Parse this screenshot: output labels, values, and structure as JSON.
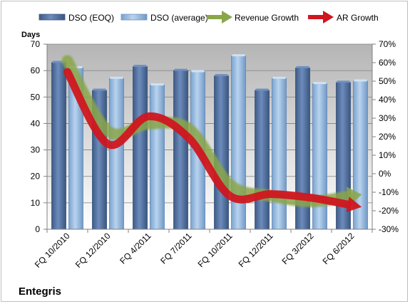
{
  "chart_data": {
    "type": "bar",
    "company": "Entegris",
    "ylabel_left": "Days",
    "categories": [
      "FQ 10/2010",
      "FQ 12/2010",
      "FQ 4/2011",
      "FQ 7/2011",
      "FQ 10/2011",
      "FQ 12/2011",
      "FQ 3/2012",
      "FQ 6/2012"
    ],
    "ylim_left": [
      0,
      70
    ],
    "yticks_left": [
      "0",
      "10",
      "20",
      "30",
      "40",
      "50",
      "60",
      "70"
    ],
    "ylim_right": [
      -0.3,
      0.7
    ],
    "yticks_right": [
      "-30%",
      "-20%",
      "-10%",
      "0%",
      "10%",
      "20%",
      "30%",
      "40%",
      "50%",
      "60%",
      "70%"
    ],
    "grid": true,
    "legend_position": "top",
    "bar_series": [
      {
        "name": "DSO (EOQ)",
        "color": "#4f6d99",
        "values": [
          63,
          52.5,
          61.5,
          60,
          58,
          52.5,
          61,
          55.5
        ]
      },
      {
        "name": "DSO (average)",
        "color": "#8fb3d9",
        "values": [
          61,
          57,
          54.5,
          59.5,
          65.5,
          57,
          55,
          56
        ]
      }
    ],
    "line_series": [
      {
        "name": "Revenue Growth",
        "color": "#8aa64a",
        "axis": "right",
        "values": [
          0.61,
          0.23,
          0.27,
          0.24,
          -0.06,
          -0.12,
          -0.15,
          -0.12
        ]
      },
      {
        "name": "AR Growth",
        "color": "#d0161f",
        "axis": "right",
        "values": [
          0.55,
          0.16,
          0.31,
          0.19,
          -0.12,
          -0.11,
          -0.13,
          -0.17
        ]
      }
    ]
  }
}
